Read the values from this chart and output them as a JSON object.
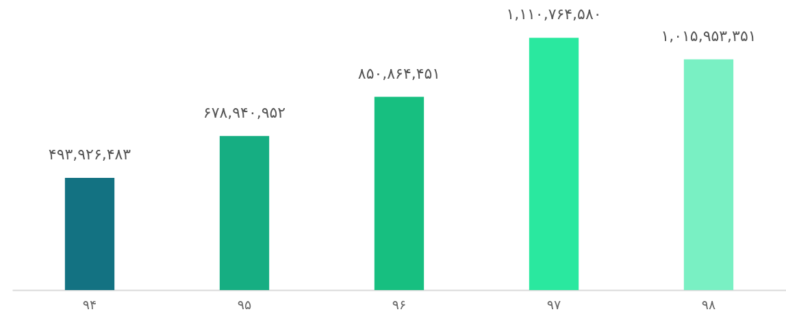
{
  "chart_data": {
    "type": "bar",
    "categories": [
      "۹۴",
      "۹۵",
      "۹۶",
      "۹۷",
      "۹۸"
    ],
    "values": [
      493926483,
      678940952,
      850864451,
      1110764580,
      1015953351
    ],
    "colors": [
      "#137282",
      "#16ae82",
      "#17bf80",
      "#2ae89f",
      "#79f0c3"
    ],
    "value_labels": [
      "۴۹۳,۹۲۶,۴۸۳",
      "۶۷۸,۹۴۰,۹۵۲",
      "۸۵۰,۸۶۴,۴۵۱",
      "۱,۱۱۰,۷۶۴,۵۸۰",
      "۱,۰۱۵,۹۵۳,۳۵۱"
    ],
    "grid": false
  }
}
